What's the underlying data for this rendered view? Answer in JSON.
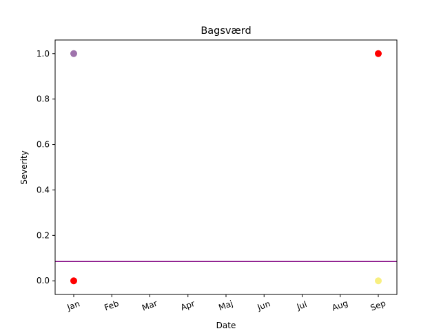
{
  "chart_data": {
    "type": "scatter",
    "title": "Bagsværd",
    "xlabel": "Date",
    "ylabel": "Severity",
    "x_categories": [
      "Jan",
      "Feb",
      "Mar",
      "Apr",
      "Maj",
      "Jun",
      "Jul",
      "Aug",
      "Sep"
    ],
    "y_ticks": [
      "0.0",
      "0.2",
      "0.4",
      "0.6",
      "0.8",
      "1.0"
    ],
    "ylim": [
      -0.06,
      1.06
    ],
    "grid": false,
    "points": [
      {
        "x": "Jan",
        "y": 1.0,
        "color": "#8e5a9e",
        "opacity": 0.85
      },
      {
        "x": "Jan",
        "y": 0.0,
        "color": "#ff0000",
        "opacity": 1.0
      },
      {
        "x": "Sep",
        "y": 1.0,
        "color": "#ff0000",
        "opacity": 1.0
      },
      {
        "x": "Sep",
        "y": 0.0,
        "color": "#f7ec6a",
        "opacity": 0.85
      }
    ],
    "hline": {
      "y": 0.085,
      "color": "#800080"
    }
  }
}
